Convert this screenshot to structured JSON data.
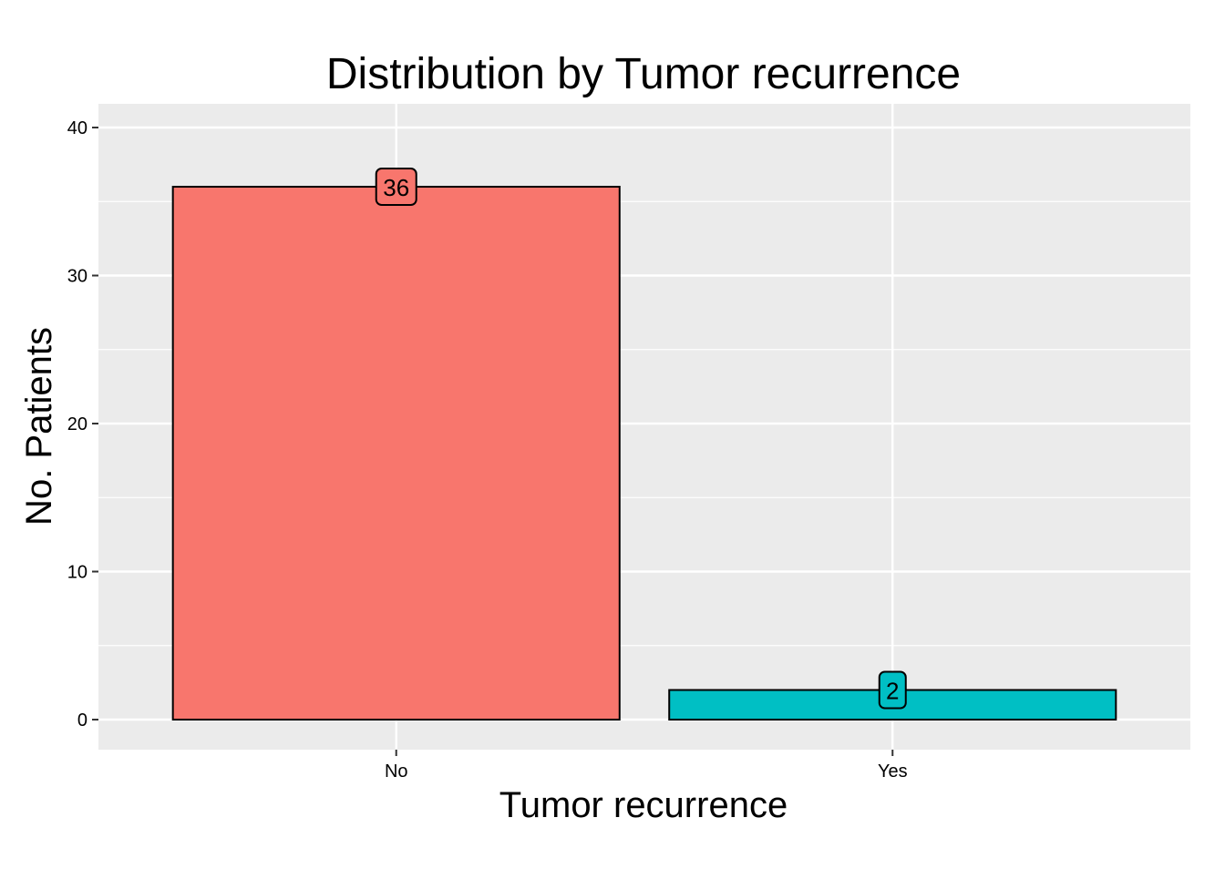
{
  "chart_data": {
    "type": "bar",
    "title": "Distribution by Tumor recurrence",
    "xlabel": "Tumor recurrence",
    "ylabel": "No. Patients",
    "categories": [
      "No",
      "Yes"
    ],
    "values": [
      36,
      2
    ],
    "data_labels": [
      "36",
      "2"
    ],
    "colors": [
      "#F8766D",
      "#00BFC4"
    ],
    "ylim": [
      -2,
      40.5
    ],
    "yticks": [
      0,
      10,
      20,
      30,
      40
    ],
    "ytick_labels": [
      "0",
      "10",
      "20",
      "30",
      "40"
    ],
    "grid": true,
    "panel_background": "#EBEBEB",
    "gridline_color": "#FFFFFF",
    "bar_outline_color": "#000000"
  }
}
